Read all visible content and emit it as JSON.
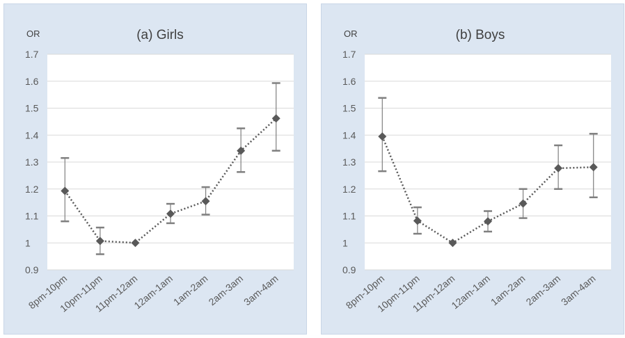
{
  "chart_data": [
    {
      "type": "line",
      "title": "(a) Girls",
      "ylabel": "OR",
      "xlabel": "",
      "categories": [
        "8pm-10pm",
        "10pm-11pm",
        "11pm-12am",
        "12am-1am",
        "1am-2am",
        "2am-3am",
        "3am-4am"
      ],
      "values": [
        1.193,
        1.007,
        1.0,
        1.108,
        1.155,
        1.342,
        1.462
      ],
      "ci_lower": [
        1.08,
        0.958,
        1.0,
        1.073,
        1.105,
        1.263,
        1.342
      ],
      "ci_upper": [
        1.315,
        1.057,
        1.0,
        1.145,
        1.207,
        1.425,
        1.593
      ],
      "ylim": [
        0.9,
        1.7
      ],
      "yticks": [
        "1.7",
        "1.6",
        "1.5",
        "1.4",
        "1.3",
        "1.2",
        "1.1",
        "1",
        "0.9"
      ],
      "grid": true,
      "line_style": "dotted",
      "marker": "diamond",
      "color": "#595959"
    },
    {
      "type": "line",
      "title": "(b) Boys",
      "ylabel": "OR",
      "xlabel": "",
      "categories": [
        "8pm-10pm",
        "10pm-11pm",
        "11pm-12am",
        "12am-1am",
        "1am-2am",
        "2am-3am",
        "3am-4am"
      ],
      "values": [
        1.395,
        1.082,
        1.0,
        1.08,
        1.146,
        1.277,
        1.281
      ],
      "ci_lower": [
        1.266,
        1.034,
        1.0,
        1.042,
        1.092,
        1.2,
        1.169
      ],
      "ci_upper": [
        1.538,
        1.132,
        1.0,
        1.118,
        1.2,
        1.362,
        1.405
      ],
      "ylim": [
        0.9,
        1.7
      ],
      "yticks": [
        "1.7",
        "1.6",
        "1.5",
        "1.4",
        "1.3",
        "1.2",
        "1.1",
        "1",
        "0.9"
      ],
      "grid": true,
      "line_style": "dotted",
      "marker": "diamond",
      "color": "#595959"
    }
  ]
}
